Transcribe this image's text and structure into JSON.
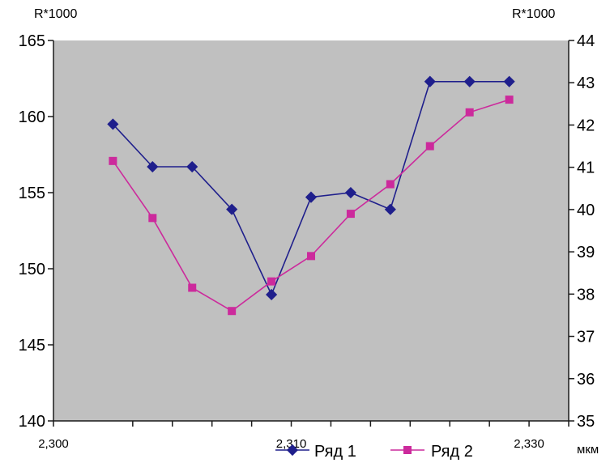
{
  "chart_data": {
    "type": "line",
    "x": [
      2.298,
      2.302,
      2.304,
      2.306,
      2.308,
      2.31,
      2.312,
      2.314,
      2.316,
      2.318,
      2.32,
      2.322,
      2.324
    ],
    "xticks": [
      "2,300",
      "2,310",
      "2,330"
    ],
    "xunit": "мкм",
    "y_left": {
      "label": "R*1000",
      "lim": [
        140,
        165
      ],
      "ticks": [
        "140",
        "145",
        "150",
        "155",
        "160",
        "165"
      ]
    },
    "y_right": {
      "label": "R*1000",
      "lim": [
        35,
        44
      ],
      "ticks": [
        "35",
        "36",
        "37",
        "38",
        "39",
        "40",
        "41",
        "42",
        "43",
        "44"
      ]
    },
    "series": [
      {
        "name": "Ряд 1",
        "axis": "left",
        "marker": "diamond",
        "color": "#1f1f8c",
        "points": [
          [
            2.301,
            159.5
          ],
          [
            2.303,
            156.7
          ],
          [
            2.305,
            156.7
          ],
          [
            2.307,
            153.9
          ],
          [
            2.309,
            148.3
          ],
          [
            2.311,
            154.7
          ],
          [
            2.313,
            155.0
          ],
          [
            2.315,
            153.9
          ],
          [
            2.317,
            162.3
          ],
          [
            2.319,
            162.3
          ],
          [
            2.321,
            162.3
          ]
        ]
      },
      {
        "name": "Ряд 2",
        "axis": "right",
        "marker": "square",
        "color": "#cc2a9c",
        "points": [
          [
            2.301,
            41.15
          ],
          [
            2.303,
            39.8
          ],
          [
            2.305,
            38.15
          ],
          [
            2.307,
            37.6
          ],
          [
            2.309,
            38.3
          ],
          [
            2.311,
            38.9
          ],
          [
            2.313,
            39.9
          ],
          [
            2.315,
            40.6
          ],
          [
            2.317,
            41.5
          ],
          [
            2.319,
            42.3
          ],
          [
            2.321,
            42.6
          ]
        ]
      }
    ],
    "grid": false,
    "legend": "bottom",
    "background": "#c0c0c0"
  }
}
